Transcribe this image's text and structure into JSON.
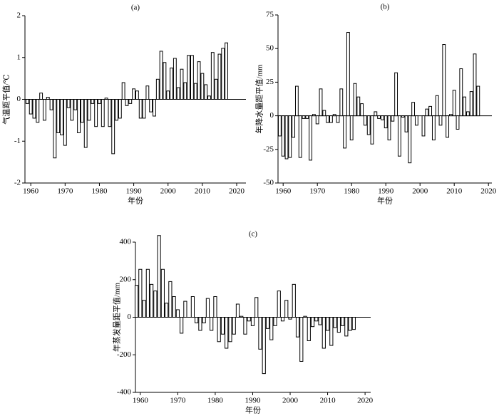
{
  "chart_data": [
    {
      "type": "bar",
      "title": "(a)",
      "xlabel": "年份",
      "ylabel": "气温距平值/℃",
      "x": [
        1959,
        1960,
        1961,
        1962,
        1963,
        1964,
        1965,
        1966,
        1967,
        1968,
        1969,
        1970,
        1971,
        1972,
        1973,
        1974,
        1975,
        1976,
        1977,
        1978,
        1979,
        1980,
        1981,
        1982,
        1983,
        1984,
        1985,
        1986,
        1987,
        1988,
        1989,
        1990,
        1991,
        1992,
        1993,
        1994,
        1995,
        1996,
        1997,
        1998,
        1999,
        2000,
        2001,
        2002,
        2003,
        2004,
        2005,
        2006,
        2007,
        2008,
        2009,
        2010,
        2011,
        2012,
        2013,
        2014,
        2015,
        2016,
        2017
      ],
      "values": [
        -0.1,
        -0.35,
        -0.45,
        -0.55,
        0.15,
        -0.5,
        0.05,
        -0.25,
        -1.4,
        -0.8,
        -0.85,
        -1.1,
        -0.2,
        -0.5,
        -0.25,
        -0.8,
        -0.55,
        -1.15,
        -0.5,
        -0.1,
        -0.65,
        -0.1,
        -0.65,
        0.03,
        -0.65,
        -1.3,
        -0.5,
        -0.45,
        0.4,
        -0.15,
        -0.1,
        0.25,
        0.2,
        -0.45,
        -0.45,
        0.32,
        -0.3,
        -0.4,
        0.48,
        1.15,
        0.88,
        0.2,
        0.75,
        0.98,
        0.28,
        0.72,
        0.4,
        1.05,
        1.05,
        0.38,
        0.9,
        0.62,
        0.35,
        0.08,
        1.12,
        0.48,
        1.08,
        1.22,
        1.35
      ],
      "color": "#ffffff",
      "xlim": [
        1958.3,
        2022.7
      ],
      "xticks": [
        1960,
        1970,
        1980,
        1990,
        2000,
        2010,
        2020
      ],
      "ylim": [
        -2,
        2
      ],
      "yticks": [
        -2,
        -1,
        0,
        1,
        2
      ]
    },
    {
      "type": "bar",
      "title": "(b)",
      "xlabel": "年份",
      "ylabel": "年降水量距平值/mm",
      "x": [
        1959,
        1960,
        1961,
        1962,
        1963,
        1964,
        1965,
        1966,
        1967,
        1968,
        1969,
        1970,
        1971,
        1972,
        1973,
        1974,
        1975,
        1976,
        1977,
        1978,
        1979,
        1980,
        1981,
        1982,
        1983,
        1984,
        1985,
        1986,
        1987,
        1988,
        1989,
        1990,
        1991,
        1992,
        1993,
        1994,
        1995,
        1996,
        1997,
        1998,
        1999,
        2000,
        2001,
        2002,
        2003,
        2004,
        2005,
        2006,
        2007,
        2008,
        2009,
        2010,
        2011,
        2012,
        2013,
        2014,
        2015,
        2016,
        2017
      ],
      "values": [
        -15,
        -30,
        -32,
        -31,
        -16,
        22,
        -31,
        -2,
        -2,
        -33,
        1,
        -6,
        20,
        4,
        -5,
        -5,
        1,
        -5,
        20,
        -24,
        62,
        -18,
        24,
        14,
        9,
        -7,
        -14,
        -21,
        3,
        -2,
        -3,
        -9,
        -18,
        -4,
        32,
        -30,
        -1,
        -12,
        -35,
        10,
        -7,
        0,
        -15,
        5,
        7,
        -18,
        15,
        -7,
        53,
        -16,
        1,
        19,
        -10,
        35,
        14,
        3,
        18,
        46,
        22
      ],
      "color": "#ffffff",
      "xlim": [
        1958.5,
        2021
      ],
      "xticks": [
        1960,
        1970,
        1980,
        1990,
        2000,
        2010,
        2020
      ],
      "ylim": [
        -50,
        75
      ],
      "yticks": [
        -50,
        -25,
        0,
        25,
        50,
        75
      ]
    },
    {
      "type": "bar",
      "title": "(c)",
      "xlabel": "年份",
      "ylabel": "年蒸发量距平值/mm",
      "x": [
        1959,
        1960,
        1961,
        1962,
        1963,
        1964,
        1965,
        1966,
        1967,
        1968,
        1969,
        1970,
        1971,
        1972,
        1973,
        1974,
        1975,
        1976,
        1977,
        1978,
        1979,
        1980,
        1981,
        1982,
        1983,
        1984,
        1985,
        1986,
        1987,
        1988,
        1989,
        1990,
        1991,
        1992,
        1993,
        1994,
        1995,
        1996,
        1997,
        1998,
        1999,
        2000,
        2001,
        2002,
        2003,
        2004,
        2005,
        2006,
        2007,
        2008,
        2009,
        2010,
        2011,
        2012,
        2013,
        2014,
        2015,
        2016,
        2017
      ],
      "values": [
        170,
        255,
        90,
        255,
        175,
        140,
        435,
        255,
        75,
        190,
        110,
        40,
        -85,
        85,
        0,
        110,
        -30,
        -70,
        -30,
        100,
        -70,
        110,
        -130,
        -90,
        -165,
        -130,
        -90,
        70,
        5,
        -90,
        -20,
        -45,
        105,
        -170,
        -300,
        -60,
        -120,
        -45,
        140,
        -20,
        90,
        -10,
        175,
        -105,
        -235,
        5,
        -125,
        -50,
        -20,
        -40,
        -165,
        -70,
        -150,
        -55,
        -80,
        -45,
        -100,
        -70,
        -65
      ],
      "color": "#ffffff",
      "xlim": [
        1958.7,
        2021.5
      ],
      "xticks": [
        1960,
        1970,
        1980,
        1990,
        2000,
        2010,
        2020
      ],
      "ylim": [
        -400,
        400
      ],
      "yticks": [
        -400,
        -200,
        0,
        200,
        400
      ]
    }
  ]
}
